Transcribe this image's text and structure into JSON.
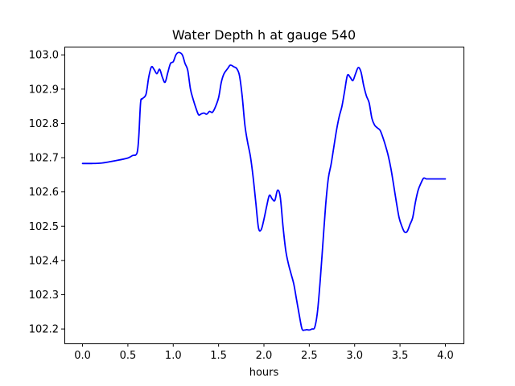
{
  "chart_data": {
    "type": "line",
    "title": "Water Depth h at gauge 540",
    "xlabel": "hours",
    "ylabel": "",
    "xlim": [
      -0.2,
      4.2
    ],
    "ylim": [
      102.158,
      103.024
    ],
    "xticks": [
      0.0,
      0.5,
      1.0,
      1.5,
      2.0,
      2.5,
      3.0,
      3.5,
      4.0
    ],
    "xtick_labels": [
      "0.0",
      "0.5",
      "1.0",
      "1.5",
      "2.0",
      "2.5",
      "3.0",
      "3.5",
      "4.0"
    ],
    "yticks": [
      102.2,
      102.3,
      102.4,
      102.5,
      102.6,
      102.7,
      102.8,
      102.9,
      103.0
    ],
    "ytick_labels": [
      "102.2",
      "102.3",
      "102.4",
      "102.5",
      "102.6",
      "102.7",
      "102.8",
      "102.9",
      "103.0"
    ],
    "grid": false,
    "series": [
      {
        "color": "#0000ff",
        "x": [
          0.0,
          0.1,
          0.2,
          0.3,
          0.4,
          0.5,
          0.55,
          0.6,
          0.62,
          0.64,
          0.66,
          0.7,
          0.73,
          0.76,
          0.79,
          0.82,
          0.85,
          0.88,
          0.91,
          0.94,
          0.97,
          1.0,
          1.03,
          1.06,
          1.1,
          1.13,
          1.16,
          1.19,
          1.22,
          1.25,
          1.28,
          1.31,
          1.34,
          1.37,
          1.4,
          1.43,
          1.46,
          1.5,
          1.53,
          1.56,
          1.6,
          1.63,
          1.67,
          1.7,
          1.73,
          1.76,
          1.79,
          1.82,
          1.85,
          1.88,
          1.91,
          1.94,
          1.97,
          2.0,
          2.03,
          2.06,
          2.09,
          2.12,
          2.15,
          2.18,
          2.21,
          2.24,
          2.27,
          2.3,
          2.33,
          2.36,
          2.39,
          2.42,
          2.45,
          2.47,
          2.5,
          2.53,
          2.56,
          2.59,
          2.62,
          2.65,
          2.68,
          2.71,
          2.74,
          2.77,
          2.8,
          2.83,
          2.86,
          2.89,
          2.92,
          2.95,
          2.98,
          3.01,
          3.04,
          3.07,
          3.1,
          3.13,
          3.16,
          3.19,
          3.22,
          3.25,
          3.28,
          3.31,
          3.34,
          3.37,
          3.4,
          3.43,
          3.46,
          3.49,
          3.52,
          3.55,
          3.58,
          3.61,
          3.64,
          3.67,
          3.7,
          3.73,
          3.76,
          3.79,
          3.82,
          3.85,
          3.88,
          3.91,
          3.94,
          3.97,
          4.0
        ],
        "y": [
          102.683,
          102.683,
          102.684,
          102.688,
          102.693,
          102.699,
          102.706,
          102.713,
          102.76,
          102.86,
          102.872,
          102.885,
          102.935,
          102.965,
          102.957,
          102.945,
          102.958,
          102.935,
          102.92,
          102.948,
          102.975,
          102.98,
          103.0,
          103.007,
          103.0,
          102.975,
          102.955,
          102.9,
          102.87,
          102.845,
          102.825,
          102.828,
          102.83,
          102.827,
          102.835,
          102.832,
          102.845,
          102.875,
          102.92,
          102.945,
          102.96,
          102.97,
          102.965,
          102.96,
          102.94,
          102.88,
          102.795,
          102.745,
          102.705,
          102.645,
          102.57,
          102.495,
          102.49,
          102.52,
          102.558,
          102.59,
          102.58,
          102.575,
          102.605,
          102.585,
          102.5,
          102.43,
          102.39,
          102.36,
          102.33,
          102.285,
          102.24,
          102.2,
          102.197,
          102.198,
          102.197,
          102.2,
          102.205,
          102.25,
          102.34,
          102.45,
          102.56,
          102.64,
          102.68,
          102.73,
          102.78,
          102.82,
          102.85,
          102.895,
          102.94,
          102.935,
          102.925,
          102.945,
          102.963,
          102.95,
          102.91,
          102.88,
          102.86,
          102.815,
          102.795,
          102.787,
          102.78,
          102.76,
          102.735,
          102.706,
          102.668,
          102.62,
          102.57,
          102.525,
          102.5,
          102.483,
          102.485,
          102.505,
          102.525,
          102.57,
          102.605,
          102.625,
          102.64,
          102.638,
          102.638,
          102.638,
          102.638,
          102.638,
          102.638,
          102.638,
          102.638
        ]
      }
    ]
  }
}
